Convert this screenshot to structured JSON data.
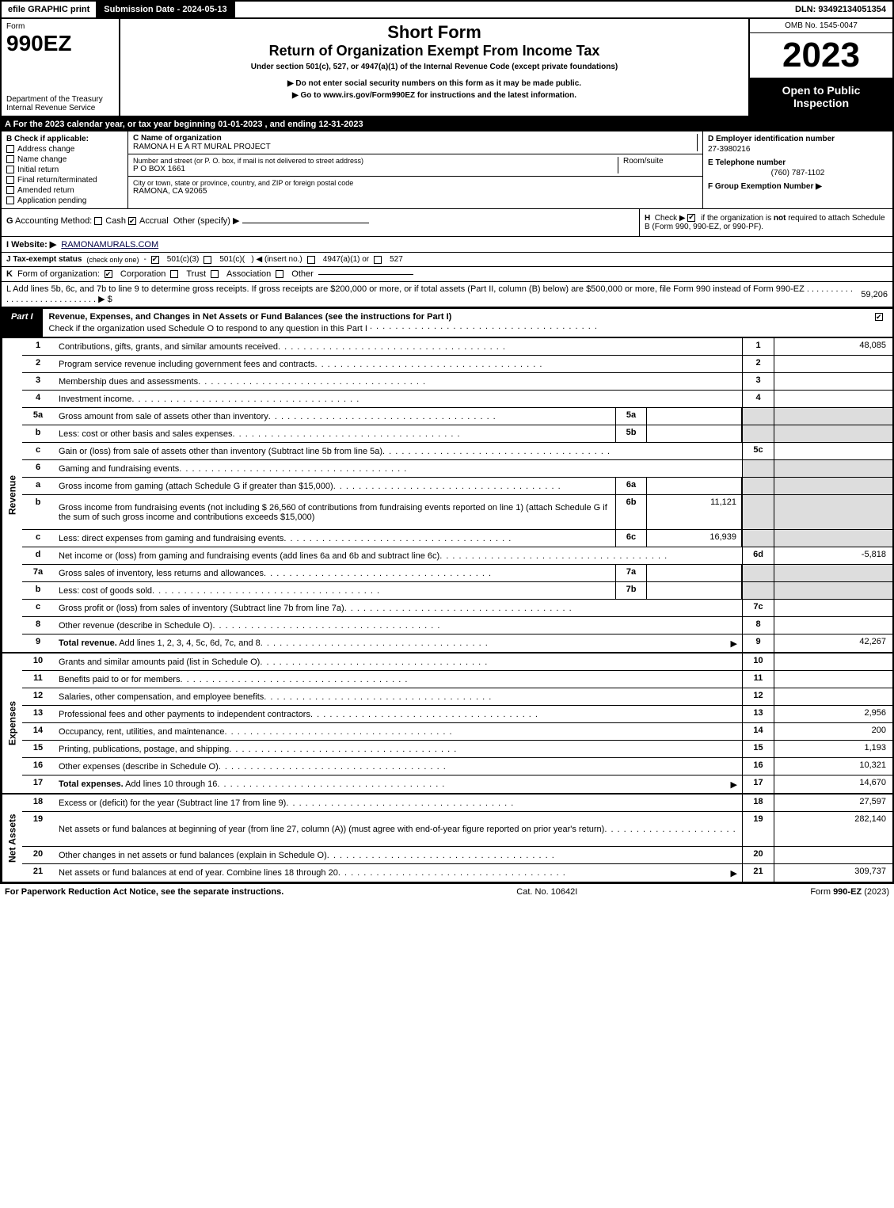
{
  "topbar": {
    "efile": "efile GRAPHIC print",
    "submission": "Submission Date - 2024-05-13",
    "dln": "DLN: 93492134051354"
  },
  "header": {
    "form_label": "Form",
    "form_number": "990EZ",
    "dept": "Department of the Treasury\nInternal Revenue Service",
    "title1": "Short Form",
    "title2": "Return of Organization Exempt From Income Tax",
    "subtitle": "Under section 501(c), 527, or 4947(a)(1) of the Internal Revenue Code (except private foundations)",
    "warn1": "▶ Do not enter social security numbers on this form as it may be made public.",
    "warn2": "▶ Go to www.irs.gov/Form990EZ for instructions and the latest information.",
    "omb": "OMB No. 1545-0047",
    "year": "2023",
    "open": "Open to Public Inspection"
  },
  "secA": "A  For the 2023 calendar year, or tax year beginning 01-01-2023 , and ending 12-31-2023",
  "boxB": {
    "label": "B  Check if applicable:",
    "items": [
      "Address change",
      "Name change",
      "Initial return",
      "Final return/terminated",
      "Amended return",
      "Application pending"
    ]
  },
  "boxC": {
    "label_name": "C Name of organization",
    "name": "RAMONA H E A RT MURAL PROJECT",
    "label_street": "Number and street (or P. O. box, if mail is not delivered to street address)",
    "street": "P O BOX 1661",
    "room_label": "Room/suite",
    "label_city": "City or town, state or province, country, and ZIP or foreign postal code",
    "city": "RAMONA, CA  92065"
  },
  "boxD": {
    "ein_label": "D Employer identification number",
    "ein": "27-3980216",
    "tel_label": "E Telephone number",
    "tel": "(760) 787-1102",
    "grp_label": "F Group Exemption Number  ▶"
  },
  "lineG": "G Accounting Method:     Cash     Accrual    Other (specify) ▶",
  "lineG_opts": {
    "cash": false,
    "accrual": true
  },
  "boxH": "H  Check ▶     if the organization is not required to attach Schedule B (Form 990, 990-EZ, or 990-PF).",
  "lineI": {
    "label": "I Website: ▶",
    "url": "RAMONAMURALS.COM"
  },
  "lineJ": "J Tax-exempt status (check only one) -     501(c)(3)     501(c)(  ) ◀ (insert no.)     4947(a)(1) or     527",
  "lineK": "K Form of organization:     Corporation     Trust     Association     Other",
  "lineL": {
    "text": "L Add lines 5b, 6c, and 7b to line 9 to determine gross receipts. If gross receipts are $200,000 or more, or if total assets (Part II, column (B) below) are $500,000 or more, file Form 990 instead of Form 990-EZ  .  .  .  .  .  .  .  .  .  .  .  .  .  .  .  .  .  .  .  .  .  .  .  .  .  .  .  .  . ▶ $",
    "value": "59,206"
  },
  "partI": {
    "tab": "Part I",
    "title": "Revenue, Expenses, and Changes in Net Assets or Fund Balances (see the instructions for Part I)",
    "check": "Check if the organization used Schedule O to respond to any question in this Part I"
  },
  "sections": [
    {
      "side": "Revenue",
      "rows": [
        {
          "n": "1",
          "d": "Contributions, gifts, grants, and similar amounts received",
          "rn": "1",
          "rv": "48,085"
        },
        {
          "n": "2",
          "d": "Program service revenue including government fees and contracts",
          "rn": "2",
          "rv": ""
        },
        {
          "n": "3",
          "d": "Membership dues and assessments",
          "rn": "3",
          "rv": ""
        },
        {
          "n": "4",
          "d": "Investment income",
          "rn": "4",
          "rv": ""
        },
        {
          "n": "5a",
          "d": "Gross amount from sale of assets other than inventory",
          "mid": "5a",
          "mv": "",
          "shade": true
        },
        {
          "n": "b",
          "d": "Less: cost or other basis and sales expenses",
          "mid": "5b",
          "mv": "",
          "shade": true
        },
        {
          "n": "c",
          "d": "Gain or (loss) from sale of assets other than inventory (Subtract line 5b from line 5a)",
          "rn": "5c",
          "rv": ""
        },
        {
          "n": "6",
          "d": "Gaming and fundraising events",
          "shade": true
        },
        {
          "n": "a",
          "d": "Gross income from gaming (attach Schedule G if greater than $15,000)",
          "mid": "6a",
          "mv": "",
          "shade": true
        },
        {
          "n": "b",
          "d": "Gross income from fundraising events (not including $  26,560        of contributions from fundraising events reported on line 1) (attach Schedule G if the sum of such gross income and contributions exceeds $15,000)",
          "mid": "6b",
          "mv": "11,121",
          "shade": true,
          "tall": true
        },
        {
          "n": "c",
          "d": "Less: direct expenses from gaming and fundraising events",
          "mid": "6c",
          "mv": "16,939",
          "shade": true
        },
        {
          "n": "d",
          "d": "Net income or (loss) from gaming and fundraising events (add lines 6a and 6b and subtract line 6c)",
          "rn": "6d",
          "rv": "-5,818"
        },
        {
          "n": "7a",
          "d": "Gross sales of inventory, less returns and allowances",
          "mid": "7a",
          "mv": "",
          "shade": true
        },
        {
          "n": "b",
          "d": "Less: cost of goods sold",
          "mid": "7b",
          "mv": "",
          "shade": true
        },
        {
          "n": "c",
          "d": "Gross profit or (loss) from sales of inventory (Subtract line 7b from line 7a)",
          "rn": "7c",
          "rv": ""
        },
        {
          "n": "8",
          "d": "Other revenue (describe in Schedule O)",
          "rn": "8",
          "rv": ""
        },
        {
          "n": "9",
          "d": "Total revenue. Add lines 1, 2, 3, 4, 5c, 6d, 7c, and 8",
          "rn": "9",
          "rv": "42,267",
          "bold": true,
          "arrow": true
        }
      ]
    },
    {
      "side": "Expenses",
      "rows": [
        {
          "n": "10",
          "d": "Grants and similar amounts paid (list in Schedule O)",
          "rn": "10",
          "rv": ""
        },
        {
          "n": "11",
          "d": "Benefits paid to or for members",
          "rn": "11",
          "rv": ""
        },
        {
          "n": "12",
          "d": "Salaries, other compensation, and employee benefits",
          "rn": "12",
          "rv": ""
        },
        {
          "n": "13",
          "d": "Professional fees and other payments to independent contractors",
          "rn": "13",
          "rv": "2,956"
        },
        {
          "n": "14",
          "d": "Occupancy, rent, utilities, and maintenance",
          "rn": "14",
          "rv": "200"
        },
        {
          "n": "15",
          "d": "Printing, publications, postage, and shipping",
          "rn": "15",
          "rv": "1,193"
        },
        {
          "n": "16",
          "d": "Other expenses (describe in Schedule O)",
          "rn": "16",
          "rv": "10,321"
        },
        {
          "n": "17",
          "d": "Total expenses. Add lines 10 through 16",
          "rn": "17",
          "rv": "14,670",
          "bold": true,
          "arrow": true
        }
      ]
    },
    {
      "side": "Net Assets",
      "rows": [
        {
          "n": "18",
          "d": "Excess or (deficit) for the year (Subtract line 17 from line 9)",
          "rn": "18",
          "rv": "27,597"
        },
        {
          "n": "19",
          "d": "Net assets or fund balances at beginning of year (from line 27, column (A)) (must agree with end-of-year figure reported on prior year's return)",
          "rn": "19",
          "rv": "282,140",
          "tall": true
        },
        {
          "n": "20",
          "d": "Other changes in net assets or fund balances (explain in Schedule O)",
          "rn": "20",
          "rv": ""
        },
        {
          "n": "21",
          "d": "Net assets or fund balances at end of year. Combine lines 18 through 20",
          "rn": "21",
          "rv": "309,737",
          "arrow": true
        }
      ]
    }
  ],
  "footer": {
    "left": "For Paperwork Reduction Act Notice, see the separate instructions.",
    "mid": "Cat. No. 10642I",
    "right": "Form 990-EZ (2023)"
  }
}
